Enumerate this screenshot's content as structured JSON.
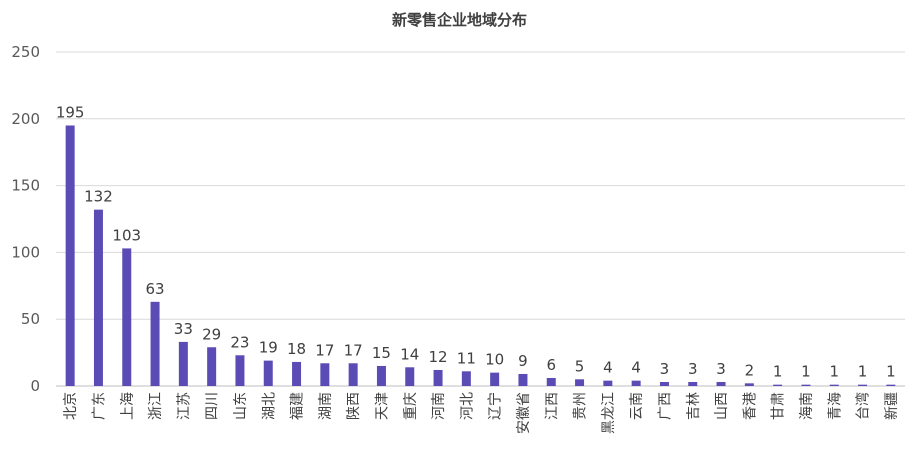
{
  "chart_data": {
    "type": "bar",
    "title": "新零售企业地域分布",
    "xlabel": "",
    "ylabel": "",
    "ylim": [
      0,
      250
    ],
    "yticks": [
      0,
      50,
      100,
      150,
      200,
      250
    ],
    "grid": true,
    "legend": "none",
    "bar_color": "#5b4bb5",
    "categories": [
      "北京",
      "广东",
      "上海",
      "浙江",
      "江苏",
      "四川",
      "山东",
      "湖北",
      "福建",
      "湖南",
      "陕西",
      "天津",
      "重庆",
      "河南",
      "河北",
      "辽宁",
      "安徽省",
      "江西",
      "贵州",
      "黑龙江",
      "云南",
      "广西",
      "吉林",
      "山西",
      "香港",
      "甘肃",
      "海南",
      "青海",
      "台湾",
      "新疆"
    ],
    "values": [
      195,
      132,
      103,
      63,
      33,
      29,
      23,
      19,
      18,
      17,
      17,
      15,
      14,
      12,
      11,
      10,
      9,
      6,
      5,
      4,
      4,
      3,
      3,
      3,
      2,
      1,
      1,
      1,
      1,
      1
    ]
  }
}
